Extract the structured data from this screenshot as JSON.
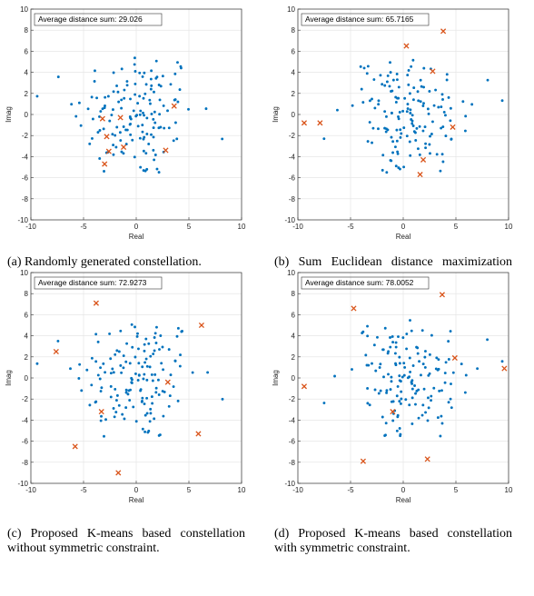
{
  "chart_data": [
    {
      "type": "scatter",
      "panel_label": "(a)",
      "caption": "Randomly generated constellation.",
      "annotation": "Average distance sum: 29.026",
      "xlabel": "Real",
      "ylabel": "Imag",
      "xlim": [
        -10,
        10
      ],
      "ylim": [
        -10,
        10
      ],
      "xticks": [
        -10,
        -5,
        0,
        5,
        10
      ],
      "yticks": [
        -10,
        -8,
        -6,
        -4,
        -2,
        0,
        2,
        4,
        6,
        8,
        10
      ],
      "grid": true,
      "colors": {
        "points": "#0072BD",
        "centroids": "#D95319"
      },
      "centroids": {
        "x": [
          -3.2,
          -2.8,
          -2.6,
          -1.5,
          -1.2,
          -3.0,
          2.8,
          3.6
        ],
        "y": [
          -0.4,
          -2.1,
          -3.5,
          -0.3,
          -3.1,
          -4.7,
          -3.4,
          0.8
        ]
      }
    },
    {
      "type": "scatter",
      "panel_label": "(b)",
      "caption": "Sum Euclidean distance maximization based constellation.",
      "annotation": "Average distance sum: 65.7165",
      "xlabel": "Real",
      "ylabel": "Imag",
      "xlim": [
        -10,
        10
      ],
      "ylim": [
        -10,
        10
      ],
      "xticks": [
        -10,
        -5,
        0,
        5,
        10
      ],
      "yticks": [
        -10,
        -8,
        -6,
        -4,
        -2,
        0,
        2,
        4,
        6,
        8,
        10
      ],
      "grid": true,
      "colors": {
        "points": "#0072BD",
        "centroids": "#D95319"
      },
      "centroids": {
        "x": [
          -9.4,
          -7.9,
          0.3,
          2.8,
          3.8,
          4.7,
          1.9,
          1.6
        ],
        "y": [
          -0.8,
          -0.8,
          6.5,
          4.1,
          7.9,
          -1.2,
          -4.3,
          -5.7
        ]
      }
    },
    {
      "type": "scatter",
      "panel_label": "(c)",
      "caption": "Proposed K-means based constellation without symmetric constraint.",
      "annotation": "Average distance sum: 72.9273",
      "xlabel": "Real",
      "ylabel": "Imag",
      "xlim": [
        -10,
        10
      ],
      "ylim": [
        -10,
        10
      ],
      "xticks": [
        -10,
        -5,
        0,
        5,
        10
      ],
      "yticks": [
        -10,
        -8,
        -6,
        -4,
        -2,
        0,
        2,
        4,
        6,
        8,
        10
      ],
      "grid": true,
      "colors": {
        "points": "#0072BD",
        "centroids": "#D95319"
      },
      "centroids": {
        "x": [
          -7.6,
          -3.8,
          6.2,
          -5.8,
          -3.3,
          -1.7,
          3.0,
          5.9
        ],
        "y": [
          2.5,
          7.1,
          5.0,
          -6.5,
          -3.2,
          -9.0,
          -0.4,
          -5.3
        ]
      }
    },
    {
      "type": "scatter",
      "panel_label": "(d)",
      "caption": "Proposed K-means based constellation with symmetric constraint.",
      "annotation": "Average distance sum: 78.0052",
      "xlabel": "Real",
      "ylabel": "Imag",
      "xlim": [
        -10,
        10
      ],
      "ylim": [
        -10,
        10
      ],
      "xticks": [
        -10,
        -5,
        0,
        5,
        10
      ],
      "yticks": [
        -10,
        -8,
        -6,
        -4,
        -2,
        0,
        2,
        4,
        6,
        8,
        10
      ],
      "grid": true,
      "colors": {
        "points": "#0072BD",
        "centroids": "#D95319"
      },
      "centroids": {
        "x": [
          -9.4,
          -4.7,
          3.7,
          4.9,
          9.6,
          -3.8,
          -1.0,
          2.3
        ],
        "y": [
          -0.8,
          6.6,
          7.9,
          1.9,
          0.9,
          -7.9,
          -3.2,
          -7.7
        ]
      }
    }
  ]
}
